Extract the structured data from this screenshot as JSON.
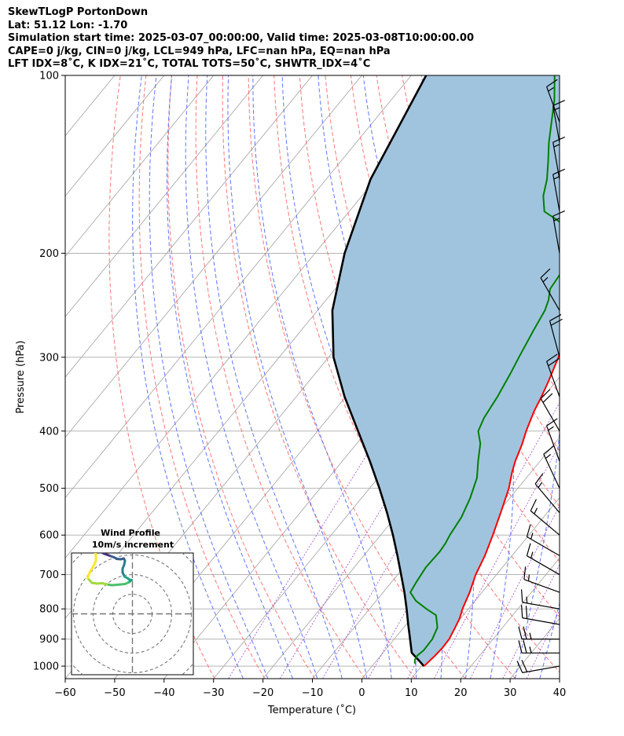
{
  "header": {
    "title": "SkewTLogP PortonDown",
    "latlon": "Lat: 51.12   Lon: -1.70",
    "times": "Simulation start time: 2025-03-07_00:00:00, Valid time: 2025-03-08T10:00:00.00",
    "indices1": "CAPE=0 j/kg, CIN=0 j/kg, LCL=949 hPa, LFC=nan hPa, EQ=nan hPa",
    "indices2": "LFT IDX=8˚C, K IDX=21˚C, TOTAL TOTS=50˚C, SHWTR_IDX=4˚C"
  },
  "chart_data": {
    "type": "line",
    "xlabel": "Temperature (˚C)",
    "ylabel": "Pressure (hPa)",
    "xlim": [
      -60,
      40
    ],
    "ylim": [
      1050,
      100
    ],
    "y_scale": "log",
    "skew": true,
    "x_ticks": [
      -60,
      -50,
      -40,
      -30,
      -20,
      -10,
      0,
      10,
      20,
      30,
      40
    ],
    "y_ticks": [
      1000,
      900,
      800,
      700,
      600,
      500,
      400,
      300,
      200,
      100
    ],
    "grid": true,
    "colors": {
      "temperature": "#ff0000",
      "dewpoint": "#008000",
      "parcel": "#000000",
      "fill": "#a1c4de",
      "dry_adiabats": "#ff6666",
      "moist_adiabats": "#4d66ff",
      "mixing_ratio": "#9933cc",
      "isotherms": "#aaaaaa"
    },
    "series": [
      {
        "kind": "temperature",
        "points": [
          [
            1000,
            10.5
          ],
          [
            960,
            11
          ],
          [
            930,
            11.2
          ],
          [
            900,
            11.1
          ],
          [
            860,
            10.4
          ],
          [
            830,
            9.8
          ],
          [
            800,
            8.8
          ],
          [
            750,
            7.5
          ],
          [
            700,
            5.8
          ],
          [
            650,
            4.5
          ],
          [
            600,
            2.7
          ],
          [
            550,
            0.6
          ],
          [
            500,
            -1.8
          ],
          [
            470,
            -3.8
          ],
          [
            450,
            -5
          ],
          [
            420,
            -6.5
          ],
          [
            400,
            -7.8
          ],
          [
            370,
            -9.5
          ],
          [
            350,
            -10.4
          ],
          [
            330,
            -11.5
          ],
          [
            300,
            -13.5
          ],
          [
            280,
            -15.3
          ],
          [
            260,
            -17
          ],
          [
            240,
            -18.5
          ],
          [
            230,
            -19.7
          ],
          [
            220,
            -21
          ],
          [
            210,
            -21.5
          ],
          [
            200,
            -21.7
          ],
          [
            190,
            -22.5
          ],
          [
            180,
            -24
          ],
          [
            170,
            -25.5
          ],
          [
            160,
            -27.5
          ],
          [
            150,
            -30.7
          ],
          [
            140,
            -34
          ],
          [
            130,
            -38
          ],
          [
            120,
            -42.6
          ],
          [
            110,
            -47
          ],
          [
            100,
            -52
          ]
        ]
      },
      {
        "kind": "dewpoint",
        "points": [
          [
            990,
            8.2
          ],
          [
            975,
            7.6
          ],
          [
            960,
            7.4
          ],
          [
            940,
            7.8
          ],
          [
            900,
            7.7
          ],
          [
            860,
            6.8
          ],
          [
            820,
            4.5
          ],
          [
            800,
            1.5
          ],
          [
            775,
            -2
          ],
          [
            750,
            -4.5
          ],
          [
            720,
            -5
          ],
          [
            680,
            -5.5
          ],
          [
            640,
            -5.3
          ],
          [
            620,
            -5.5
          ],
          [
            600,
            -6
          ],
          [
            560,
            -6.6
          ],
          [
            520,
            -8
          ],
          [
            480,
            -10
          ],
          [
            450,
            -12.5
          ],
          [
            420,
            -15
          ],
          [
            400,
            -17.5
          ],
          [
            380,
            -18.5
          ],
          [
            350,
            -19.3
          ],
          [
            320,
            -20.5
          ],
          [
            300,
            -21.5
          ],
          [
            270,
            -23
          ],
          [
            250,
            -24
          ],
          [
            240,
            -25
          ],
          [
            230,
            -26.5
          ],
          [
            215,
            -27
          ],
          [
            200,
            -27
          ],
          [
            190,
            -29.8
          ],
          [
            180,
            -33.8
          ],
          [
            175,
            -37
          ],
          [
            170,
            -40.5
          ],
          [
            160,
            -43.3
          ],
          [
            150,
            -45.3
          ],
          [
            140,
            -48
          ],
          [
            130,
            -51
          ],
          [
            110,
            -57
          ],
          [
            100,
            -61
          ]
        ]
      },
      {
        "kind": "parcel",
        "points": [
          [
            1000,
            10.5
          ],
          [
            980,
            8.7
          ],
          [
            949,
            5.8
          ],
          [
            900,
            3.2
          ],
          [
            850,
            0.4
          ],
          [
            800,
            -2.5
          ],
          [
            750,
            -5.7
          ],
          [
            700,
            -9.3
          ],
          [
            650,
            -13.2
          ],
          [
            600,
            -17.5
          ],
          [
            550,
            -22.4
          ],
          [
            500,
            -28
          ],
          [
            450,
            -34.4
          ],
          [
            400,
            -41.8
          ],
          [
            350,
            -50.2
          ],
          [
            300,
            -59
          ],
          [
            250,
            -67
          ],
          [
            200,
            -74
          ],
          [
            150,
            -81
          ],
          [
            100,
            -87
          ]
        ]
      }
    ],
    "wind_barbs": [
      {
        "p": 1000,
        "direction": 260,
        "speed_kt": 20
      },
      {
        "p": 950,
        "direction": 270,
        "speed_kt": 25
      },
      {
        "p": 900,
        "direction": 270,
        "speed_kt": 25
      },
      {
        "p": 850,
        "direction": 280,
        "speed_kt": 20
      },
      {
        "p": 800,
        "direction": 280,
        "speed_kt": 15
      },
      {
        "p": 750,
        "direction": 290,
        "speed_kt": 15
      },
      {
        "p": 700,
        "direction": 300,
        "speed_kt": 15
      },
      {
        "p": 650,
        "direction": 300,
        "speed_kt": 15
      },
      {
        "p": 600,
        "direction": 310,
        "speed_kt": 15
      },
      {
        "p": 550,
        "direction": 320,
        "speed_kt": 15
      },
      {
        "p": 500,
        "direction": 335,
        "speed_kt": 15
      },
      {
        "p": 450,
        "direction": 340,
        "speed_kt": 15
      },
      {
        "p": 400,
        "direction": 330,
        "speed_kt": 20
      },
      {
        "p": 350,
        "direction": 340,
        "speed_kt": 20
      },
      {
        "p": 300,
        "direction": 345,
        "speed_kt": 20
      },
      {
        "p": 250,
        "direction": 330,
        "speed_kt": 15
      },
      {
        "p": 200,
        "direction": 350,
        "speed_kt": 15
      },
      {
        "p": 170,
        "direction": 350,
        "speed_kt": 15
      },
      {
        "p": 150,
        "direction": 350,
        "speed_kt": 15
      },
      {
        "p": 130,
        "direction": 350,
        "speed_kt": 15
      },
      {
        "p": 120,
        "direction": 340,
        "speed_kt": 15
      }
    ],
    "inset": {
      "title": "Wind Profile",
      "subtitle": "10m/s increment",
      "hodograph": [
        [
          5.2,
          -4.5
        ],
        [
          5.3,
          -3.5
        ],
        [
          5.4,
          -2.5
        ],
        [
          5.6,
          -1.5
        ],
        [
          6.2,
          -1.2
        ],
        [
          6.7,
          -0.8
        ],
        [
          7.5,
          -0.3
        ],
        [
          8.3,
          0.2
        ],
        [
          9.2,
          0.5
        ],
        [
          10,
          0.8
        ],
        [
          10.8,
          1.1
        ],
        [
          11.5,
          1.5
        ],
        [
          12.5,
          1.6
        ],
        [
          13.3,
          1.4
        ],
        [
          13.6,
          2
        ],
        [
          13.4,
          3
        ],
        [
          13,
          4
        ],
        [
          13,
          5
        ],
        [
          13.5,
          6
        ],
        [
          14.2,
          6.4
        ],
        [
          14.8,
          6.8
        ],
        [
          15.3,
          6.9
        ],
        [
          14.5,
          7.5
        ],
        [
          13.6,
          7.9
        ],
        [
          12.6,
          8
        ],
        [
          11.5,
          8.1
        ],
        [
          10.3,
          8.2
        ],
        [
          9,
          8
        ],
        [
          7.8,
          7.7
        ],
        [
          6.5,
          7.8
        ],
        [
          5.2,
          7.6
        ],
        [
          4.1,
          6.4
        ],
        [
          4.6,
          5
        ],
        [
          5.5,
          3.5
        ],
        [
          6.2,
          2
        ],
        [
          6.2,
          0.6
        ],
        [
          5.8,
          -1
        ]
      ]
    }
  }
}
